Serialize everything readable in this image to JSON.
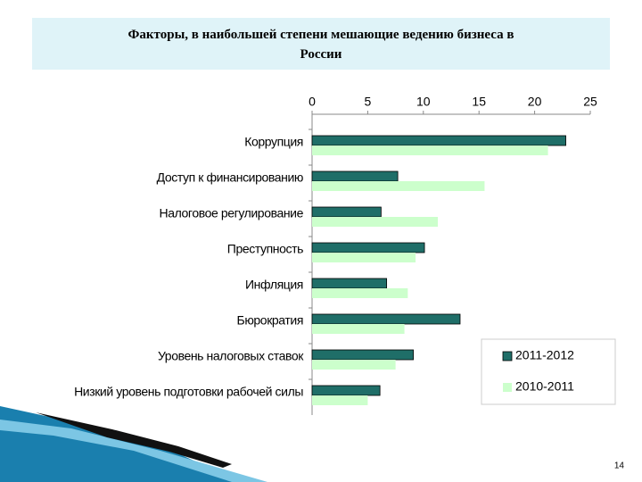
{
  "chart_data": {
    "type": "barh",
    "title": "Факторы, в наибольшей степени мешающие ведению бизнеса в России",
    "categories": [
      "Коррупция",
      "Доступ к финансированию",
      "Налоговое регулирование",
      "Преступность",
      "Инфляция",
      "Бюрократия",
      "Уровень налоговых ставок",
      "Низкий уровень подготовки рабочей силы"
    ],
    "series": [
      {
        "name": "2011-2012",
        "color": "#1f6e68",
        "values": [
          22.8,
          7.7,
          6.2,
          10.1,
          6.7,
          13.3,
          9.1,
          6.1
        ]
      },
      {
        "name": "2010-2011",
        "color": "#ccffcc",
        "values": [
          21.2,
          15.5,
          11.3,
          9.3,
          8.6,
          8.3,
          7.5,
          5.0
        ]
      }
    ],
    "xlim": [
      0,
      25
    ],
    "xticks": [
      0,
      5,
      10,
      15,
      20,
      25
    ],
    "legend": "lower right"
  },
  "page_number": "14"
}
